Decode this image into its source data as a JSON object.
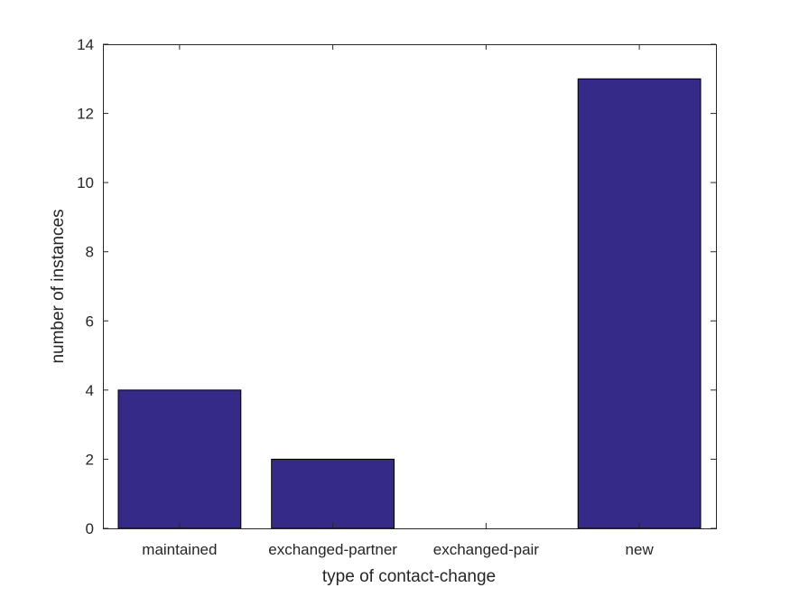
{
  "chart_data": {
    "type": "bar",
    "categories": [
      "maintained",
      "exchanged-partner",
      "exchanged-pair",
      "new"
    ],
    "values": [
      4,
      2,
      0,
      13
    ],
    "title": "",
    "xlabel": "type of contact-change",
    "ylabel": "number of instances",
    "ylim": [
      0,
      14
    ],
    "yticks": [
      0,
      2,
      4,
      6,
      8,
      10,
      12,
      14
    ],
    "grid": false,
    "bar_color": "#352a87"
  }
}
